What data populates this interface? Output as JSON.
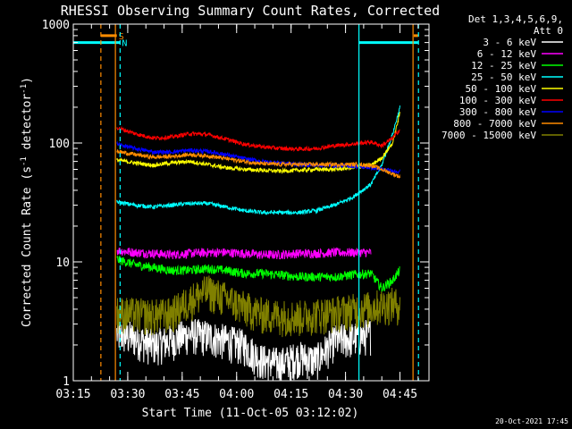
{
  "chart_data": {
    "type": "line",
    "title": "RHESSI Observing Summary Count Rates, Corrected",
    "xlabel": "Start Time (11-Oct-05 03:12:02)",
    "ylabel_main": "Corrected Count Rate (s",
    "ylabel_sup1": "-1",
    "ylabel_mid": " detector",
    "ylabel_sup2": "-1",
    "ylabel_end": ")",
    "y_scale": "log",
    "ylim": [
      1,
      1000
    ],
    "xlim_minutes": [
      3.0,
      101.0
    ],
    "x_ticks": [
      {
        "m": 3.0,
        "label": "03:15"
      },
      {
        "m": 18.0,
        "label": "03:30"
      },
      {
        "m": 33.0,
        "label": "03:45"
      },
      {
        "m": 48.0,
        "label": "04:00"
      },
      {
        "m": 63.0,
        "label": "04:15"
      },
      {
        "m": 78.0,
        "label": "04:30"
      },
      {
        "m": 93.0,
        "label": "04:45"
      }
    ],
    "y_ticks": [
      {
        "v": 1,
        "label": "1"
      },
      {
        "v": 10,
        "label": "10"
      },
      {
        "v": 100,
        "label": "100"
      },
      {
        "v": 1000,
        "label": "1000"
      }
    ],
    "legend_header": [
      "Det 1,3,4,5,6,9,",
      "Att 0"
    ],
    "series": [
      {
        "name": "3 - 6 keV",
        "color": "#ffffff",
        "x": [
          15,
          20,
          25,
          30,
          35,
          40,
          45,
          50,
          55,
          60,
          65,
          70,
          75,
          80,
          85
        ],
        "y": [
          2.5,
          2.3,
          2.0,
          2.2,
          2.5,
          2.4,
          2.2,
          2.0,
          1.5,
          1.4,
          1.6,
          1.5,
          2.2,
          2.3,
          2.5
        ]
      },
      {
        "name": "6 - 12 keV",
        "color": "#ff00ff",
        "x": [
          15,
          20,
          25,
          30,
          35,
          40,
          45,
          50,
          55,
          60,
          65,
          70,
          75,
          80,
          85
        ],
        "y": [
          12.5,
          12.0,
          11.8,
          11.5,
          11.8,
          12.0,
          12.0,
          11.8,
          11.5,
          11.5,
          11.8,
          11.8,
          12.0,
          12.0,
          12.0
        ]
      },
      {
        "name": "12 - 25 keV",
        "color": "#00ff00",
        "x": [
          15,
          20,
          25,
          30,
          35,
          40,
          45,
          50,
          55,
          60,
          65,
          70,
          75,
          80,
          85,
          88,
          91,
          93
        ],
        "y": [
          10.5,
          9.5,
          9.0,
          8.5,
          8.5,
          8.8,
          8.5,
          8.0,
          8.0,
          7.8,
          7.5,
          7.5,
          7.5,
          7.8,
          8.0,
          6.0,
          7.0,
          8.5
        ]
      },
      {
        "name": "25 - 50 keV",
        "color": "#00ffff",
        "x": [
          15,
          20,
          25,
          30,
          35,
          40,
          45,
          50,
          55,
          60,
          65,
          70,
          75,
          80,
          85,
          88,
          91,
          93
        ],
        "y": [
          32,
          30,
          29,
          30,
          31,
          31,
          29,
          27,
          26,
          26,
          26,
          27,
          30,
          35,
          45,
          65,
          120,
          200
        ]
      },
      {
        "name": "50 - 100 keV",
        "color": "#ffff00",
        "x": [
          15,
          20,
          25,
          30,
          35,
          40,
          45,
          50,
          55,
          60,
          65,
          70,
          75,
          80,
          85,
          88,
          91,
          93
        ],
        "y": [
          72,
          68,
          65,
          68,
          70,
          66,
          62,
          60,
          59,
          58,
          59,
          60,
          60,
          62,
          65,
          75,
          100,
          180
        ]
      },
      {
        "name": "100 - 300 keV",
        "color": "#ff0000",
        "x": [
          15,
          20,
          25,
          30,
          35,
          40,
          45,
          50,
          55,
          60,
          65,
          70,
          75,
          80,
          85,
          88,
          91,
          93
        ],
        "y": [
          135,
          120,
          110,
          112,
          120,
          118,
          108,
          98,
          93,
          90,
          89,
          90,
          95,
          98,
          102,
          95,
          110,
          130
        ]
      },
      {
        "name": "300 - 800 keV",
        "color": "#0000ff",
        "x": [
          15,
          20,
          25,
          30,
          35,
          40,
          45,
          50,
          55,
          60,
          65,
          70,
          75,
          80,
          85,
          88,
          91,
          93
        ],
        "y": [
          98,
          90,
          84,
          84,
          87,
          85,
          80,
          74,
          70,
          68,
          66,
          65,
          65,
          64,
          62,
          60,
          58,
          58
        ]
      },
      {
        "name": "800 - 7000 keV",
        "color": "#ff8c00",
        "x": [
          15,
          20,
          25,
          30,
          35,
          40,
          45,
          50,
          55,
          60,
          65,
          70,
          75,
          80,
          85,
          88,
          91,
          93
        ],
        "y": [
          85,
          80,
          76,
          77,
          80,
          78,
          74,
          70,
          67,
          66,
          66,
          66,
          66,
          66,
          65,
          60,
          55,
          52
        ]
      },
      {
        "name": "7000 - 15000 keV",
        "color": "#808000",
        "x": [
          15,
          20,
          25,
          30,
          35,
          40,
          45,
          50,
          55,
          60,
          65,
          70,
          75,
          80,
          85,
          88,
          91,
          93
        ],
        "y": [
          3.8,
          3.7,
          3.6,
          3.7,
          4.8,
          5.8,
          5.0,
          4.2,
          3.7,
          3.6,
          3.5,
          3.7,
          3.8,
          4.0,
          4.2,
          4.4,
          4.5,
          4.4
        ]
      }
    ],
    "bands": [
      {
        "label": "S",
        "color": "#ff8c00",
        "x_start_min": 10.6,
        "x_end_min": 15.0,
        "level": 800,
        "side": "left"
      },
      {
        "label": "N",
        "color": "#00ffff",
        "x_start_min": 3.0,
        "x_end_min": 15.9,
        "level": 700,
        "side": "left"
      },
      {
        "label": "",
        "color": "#00ffff",
        "x_start_min": 81.7,
        "x_end_min": 98.0,
        "level": 700,
        "side": "right"
      },
      {
        "label": "",
        "color": "#ff8c00",
        "x_start_min": 96.8,
        "x_end_min": 98.0,
        "level": 800,
        "side": "right"
      }
    ],
    "vlines": [
      {
        "color": "#ff8c00",
        "dashed": true,
        "m": 10.6
      },
      {
        "color": "#ff8c00",
        "dashed": false,
        "m": 14.6
      },
      {
        "color": "#00ffff",
        "dashed": true,
        "m": 15.9
      },
      {
        "color": "#00ffff",
        "dashed": false,
        "m": 81.7
      },
      {
        "color": "#ff8c00",
        "dashed": false,
        "m": 96.6
      },
      {
        "color": "#00ffff",
        "dashed": true,
        "m": 98.1
      }
    ],
    "grid": false,
    "legend_position": "right"
  },
  "footer_timestamp": "20-Oct-2021 17:45"
}
